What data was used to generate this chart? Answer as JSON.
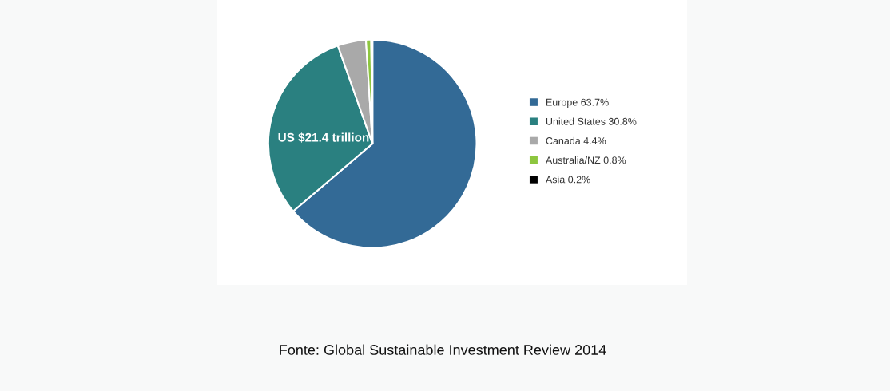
{
  "chart_data": {
    "type": "pie",
    "categories": [
      "Europe 63.7%",
      "United States 30.8%",
      "Canada 4.4%",
      "Australia/NZ 0.8%",
      "Asia 0.2%"
    ],
    "values": [
      63.7,
      30.8,
      4.4,
      0.8,
      0.2
    ],
    "colors": [
      "#336a96",
      "#2a8080",
      "#a9a9a9",
      "#8dc63f",
      "#000000"
    ],
    "legend": "right",
    "annotations": [
      "US $21.4 trillion",
      "Fonte: Global Sustainable Investment Review 2014"
    ]
  }
}
